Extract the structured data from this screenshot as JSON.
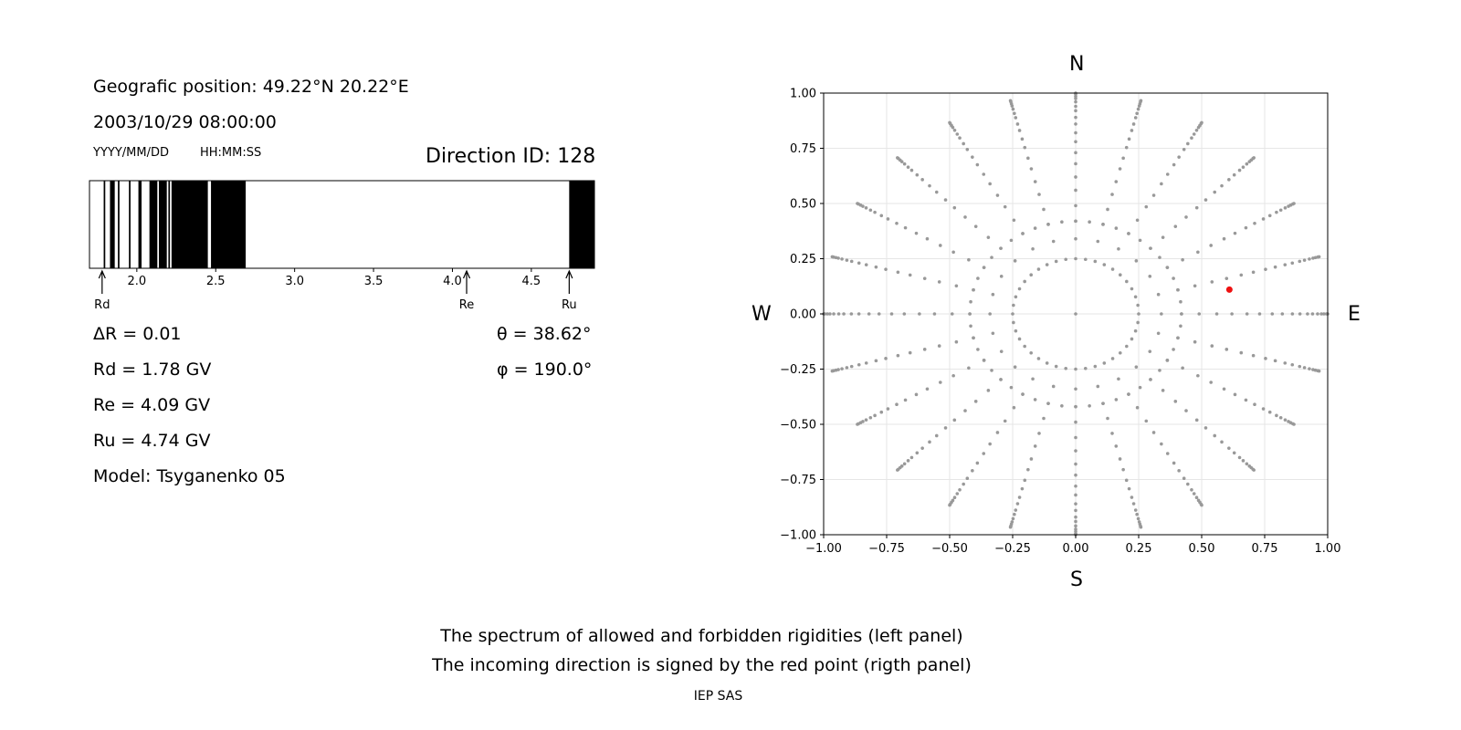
{
  "left_panel": {
    "position_line": "Geografic position: 49.22°N 20.22°E",
    "datetime": "2003/10/29 08:00:00",
    "date_format": "YYYY/MM/DD",
    "time_format": "HH:MM:SS",
    "direction_id": "Direction ID: 128",
    "delta_r": "ΔR = 0.01",
    "rd": "Rd = 1.78 GV",
    "re": "Re = 4.09 GV",
    "ru": "Ru = 4.74 GV",
    "model": "Model: Tsyganenko 05",
    "theta": "θ = 38.62°",
    "phi": "φ = 190.0°"
  },
  "right_panel": {
    "north": "N",
    "south": "S",
    "west": "W",
    "east": "E"
  },
  "footer": {
    "caption_line1": "The spectrum of allowed and forbidden rigidities (left panel)",
    "caption_line2": "The incoming direction is signed by the red point (rigth panel)",
    "credit": "IEP SAS"
  },
  "chart_data": [
    {
      "type": "bar",
      "title": "",
      "xlim": [
        1.7,
        4.9
      ],
      "xticks": [
        "2.0",
        "2.5",
        "3.0",
        "3.5",
        "4.0",
        "4.5"
      ],
      "tick_values": [
        2.0,
        2.5,
        3.0,
        3.5,
        4.0,
        4.5
      ],
      "forbidden_bands": [
        [
          1.79,
          1.8
        ],
        [
          1.83,
          1.86
        ],
        [
          1.88,
          1.89
        ],
        [
          1.95,
          1.96
        ],
        [
          2.01,
          2.03
        ],
        [
          2.08,
          2.13
        ],
        [
          2.14,
          2.19
        ],
        [
          2.2,
          2.21
        ],
        [
          2.22,
          2.45
        ],
        [
          2.47,
          2.69
        ],
        [
          4.74,
          4.9
        ]
      ],
      "markers": [
        {
          "label": "Rd",
          "value": 1.78
        },
        {
          "label": "Re",
          "value": 4.09
        },
        {
          "label": "Ru",
          "value": 4.74
        }
      ]
    },
    {
      "type": "scatter",
      "title": "",
      "xlim": [
        -1.0,
        1.0
      ],
      "ylim": [
        -1.0,
        1.0
      ],
      "xticks": [
        "−1.00",
        "−0.75",
        "−0.50",
        "−0.25",
        "0.00",
        "0.25",
        "0.50",
        "0.75",
        "1.00"
      ],
      "yticks": [
        "−1.00",
        "−0.75",
        "−0.50",
        "−0.25",
        "0.00",
        "0.25",
        "0.50",
        "0.75",
        "1.00"
      ],
      "tick_values": [
        -1.0,
        -0.75,
        -0.5,
        -0.25,
        0.0,
        0.25,
        0.5,
        0.75,
        1.0
      ],
      "grid": true,
      "direction_grid": {
        "center": [
          0,
          0
        ],
        "inner_ring_radius": 0.25,
        "ring_radii": [
          0.25,
          0.42,
          0.56,
          0.68,
          0.78,
          0.87,
          0.95,
          1.0
        ],
        "ray_count": 24,
        "color": "#999999"
      },
      "highlight_point": {
        "x": 0.61,
        "y": 0.11,
        "color": "#ee1111"
      }
    }
  ]
}
